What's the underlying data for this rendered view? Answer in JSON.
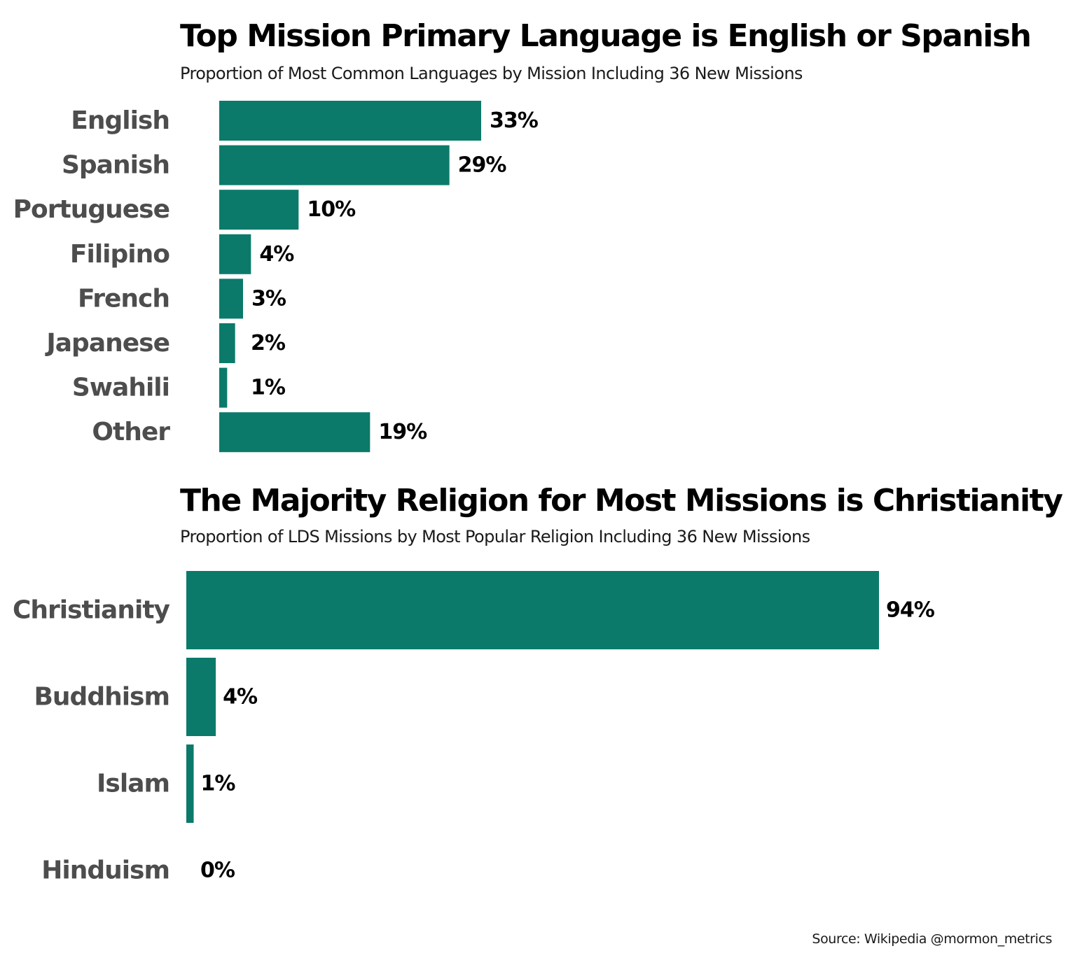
{
  "colors": {
    "bar": "#0b7a6b",
    "category_text": "#4d4d4d",
    "value_text": "#000000",
    "background": "#ffffff"
  },
  "chart_data": [
    {
      "type": "bar",
      "orientation": "horizontal",
      "title": "Top Mission Primary Language is English or Spanish",
      "subtitle": "Proportion of Most Common Languages by Mission Including 36 New Missions",
      "categories": [
        "English",
        "Spanish",
        "Portuguese",
        "Filipino",
        "French",
        "Japanese",
        "Swahili",
        "Other"
      ],
      "values": [
        33,
        29,
        10,
        4,
        3,
        2,
        1,
        19
      ],
      "value_labels": [
        "33%",
        "29%",
        "10%",
        "4%",
        "3%",
        "2%",
        "1%",
        "19%"
      ],
      "unit": "%",
      "xlabel": "",
      "ylabel": "",
      "xlim": [
        0,
        33
      ],
      "grid": false,
      "legend": "none"
    },
    {
      "type": "bar",
      "orientation": "horizontal",
      "title": "The Majority Religion for Most Missions is Christianity",
      "subtitle": "Proportion of LDS Missions by Most Popular Religion Including 36 New Missions",
      "categories": [
        "Christianity",
        "Buddhism",
        "Islam",
        "Hinduism"
      ],
      "values": [
        94,
        4,
        1,
        0
      ],
      "value_labels": [
        "94%",
        "4%",
        "1%",
        "0%"
      ],
      "unit": "%",
      "xlabel": "",
      "ylabel": "",
      "xlim": [
        0,
        94
      ],
      "grid": false,
      "legend": "none"
    }
  ],
  "caption": "Source: Wikipedia @mormon_metrics"
}
